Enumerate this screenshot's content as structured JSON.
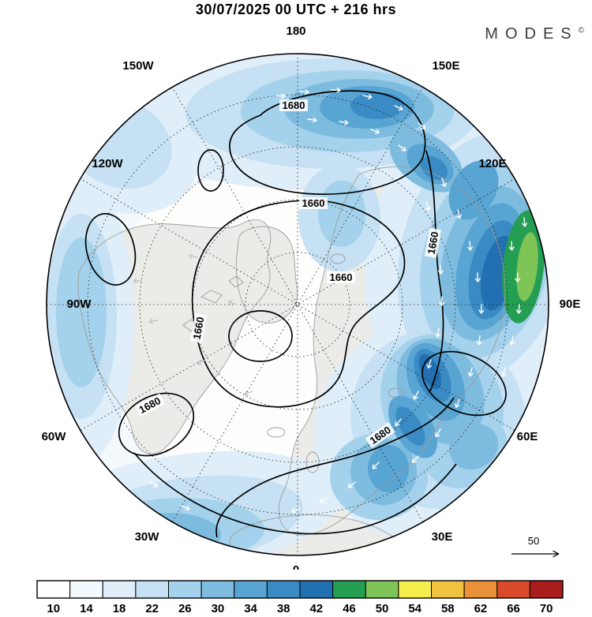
{
  "header": {
    "title": "30/07/2025  00 UTC  + 216 hrs",
    "logo_text": "MODES",
    "logo_mark": "©"
  },
  "map": {
    "lon_labels": [
      {
        "text": "180"
      },
      {
        "text": "150W"
      },
      {
        "text": "150E"
      },
      {
        "text": "120W"
      },
      {
        "text": "120E"
      },
      {
        "text": "90W"
      },
      {
        "text": "90E"
      },
      {
        "text": "60W"
      },
      {
        "text": "60E"
      },
      {
        "text": "30W"
      },
      {
        "text": "30E"
      },
      {
        "text": "0"
      }
    ],
    "contour_label_instances": [
      {
        "text": "1680"
      },
      {
        "text": "1660"
      },
      {
        "text": "1660"
      },
      {
        "text": "1660"
      },
      {
        "text": "1680"
      },
      {
        "text": "1660"
      },
      {
        "text": "1680"
      }
    ],
    "reference_arrow_label": "50"
  },
  "chart_data": {
    "type": "heatmap",
    "title": "30/07/2025 00 UTC + 216 hrs",
    "description": "Northern Hemisphere polar stereographic forecast map: shaded field (colorbar 10-70) with geopotential height contours (1660, 1680), wind vectors and coastlines",
    "projection": "polar-stereographic-north",
    "valid_date": "30/07/2025",
    "valid_time": "00 UTC",
    "forecast_lead": "+ 216 hrs",
    "contour_levels": [
      1660,
      1680
    ],
    "wind_reference_value": 50,
    "longitude_labels": [
      "180",
      "150W",
      "150E",
      "120W",
      "120E",
      "90W",
      "90E",
      "60W",
      "60E",
      "30W",
      "30E",
      "0"
    ],
    "colorbar": {
      "orientation": "horizontal",
      "ticks": [
        10,
        14,
        18,
        22,
        26,
        30,
        34,
        38,
        42,
        46,
        50,
        54,
        58,
        62,
        66,
        70
      ],
      "colors": [
        "#ffffff",
        "#f3f9fd",
        "#dfeef9",
        "#c5e1f3",
        "#a4d1eb",
        "#7ebcdf",
        "#58a4d3",
        "#3a8ac4",
        "#2270b2",
        "#239e53",
        "#7fc457",
        "#f6ee4d",
        "#f1c140",
        "#ea9038",
        "#d84a2a",
        "#a81c1c"
      ]
    }
  }
}
